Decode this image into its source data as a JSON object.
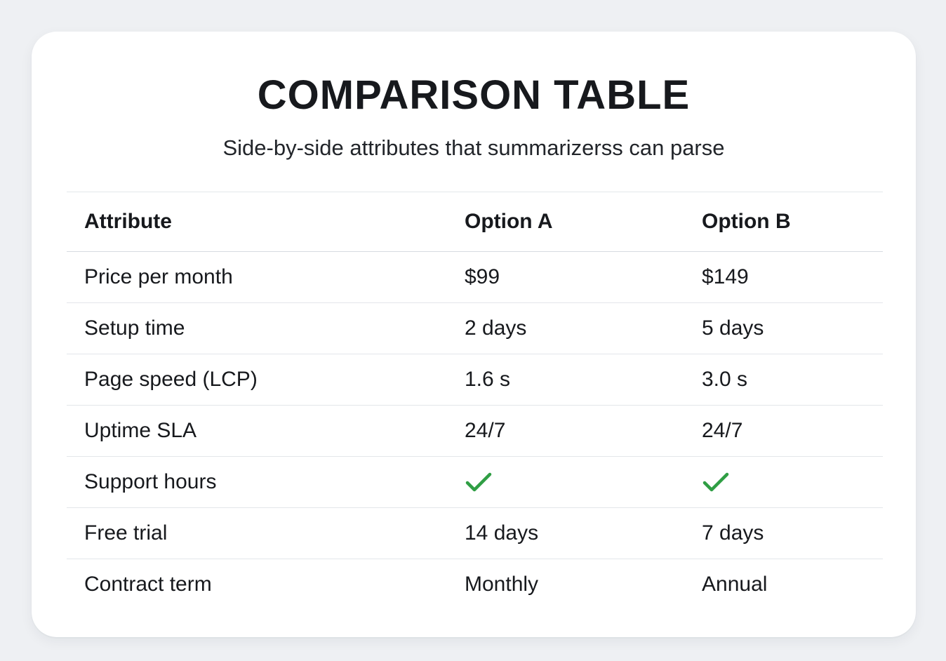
{
  "header": {
    "title": "COMPARISON TABLE",
    "subtitle": "Side-by-side attributes that summarizerss can parse"
  },
  "table": {
    "columns": [
      "Attribute",
      "Option A",
      "Option B"
    ],
    "rows": [
      [
        "Price per month",
        "$99",
        "$149"
      ],
      [
        "Setup time",
        "2 days",
        "5 days"
      ],
      [
        "Page speed (LCP)",
        "1.6 s",
        "3.0 s"
      ],
      [
        "Uptime SLA",
        "24/7",
        "24/7"
      ],
      [
        "Support hours",
        "✓",
        "✓"
      ],
      [
        "Free trial",
        "14 days",
        "7 days"
      ],
      [
        "Contract term",
        "Monthly",
        "Annual"
      ]
    ],
    "check_symbol": "✓"
  },
  "colors": {
    "page_background": "#eef0f3",
    "card_background": "#ffffff",
    "text": "#17191d",
    "divider": "#e3e6ea",
    "header_divider": "#d7dbe0",
    "check_green": "#2f9e44"
  },
  "chart_data": {
    "type": "table",
    "title": "COMPARISON TABLE",
    "subtitle": "Side-by-side attributes that summarizerss can parse",
    "columns": [
      "Attribute",
      "Option A",
      "Option B"
    ],
    "rows": [
      {
        "attribute": "Price per month",
        "option_a": "$99",
        "option_b": "$149"
      },
      {
        "attribute": "Setup time",
        "option_a": "2 days",
        "option_b": "5 days"
      },
      {
        "attribute": "Page speed (LCP)",
        "option_a": "1.6 s",
        "option_b": "3.0 s"
      },
      {
        "attribute": "Uptime SLA",
        "option_a": "24/7",
        "option_b": "24/7"
      },
      {
        "attribute": "Support hours",
        "option_a": "✓",
        "option_b": "✓"
      },
      {
        "attribute": "Free trial",
        "option_a": "14 days",
        "option_b": "7 days"
      },
      {
        "attribute": "Contract term",
        "option_a": "Monthly",
        "option_b": "Annual"
      }
    ],
    "legend": null,
    "grid": "horizontal-dividers"
  }
}
